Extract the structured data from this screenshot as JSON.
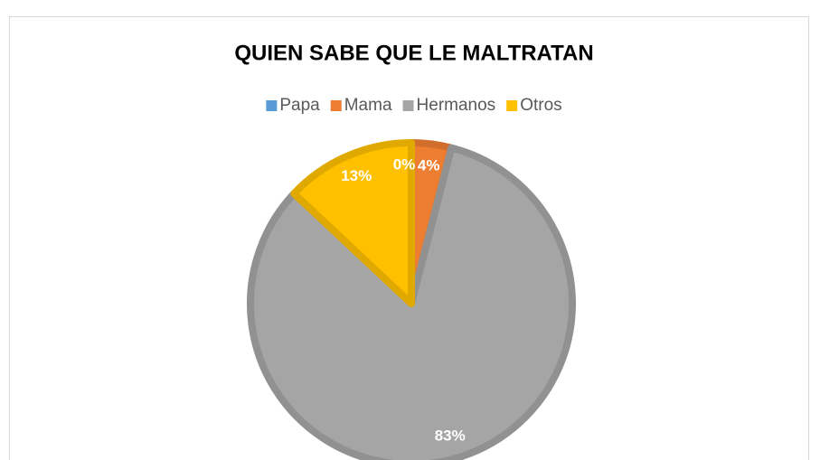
{
  "chart_data": {
    "type": "pie",
    "title": "QUIEN SABE QUE LE MALTRATAN",
    "categories": [
      "Papa",
      "Mama",
      "Hermanos",
      "Otros"
    ],
    "values": [
      0,
      4,
      83,
      13
    ],
    "value_labels": [
      "0%",
      "4%",
      "83%",
      "13%"
    ],
    "colors": [
      "#5b9bd5",
      "#ed7d31",
      "#a5a5a5",
      "#ffc000"
    ],
    "legend": "top"
  }
}
